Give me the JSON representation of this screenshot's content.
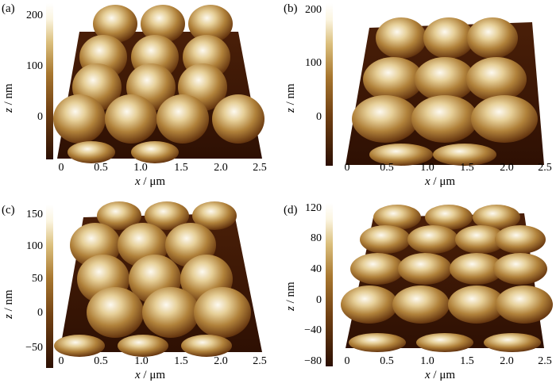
{
  "figure": {
    "x_axis_var": "x",
    "x_axis_unit": " / μm",
    "z_axis_var": "z",
    "z_axis_unit": " / nm"
  },
  "colors": {
    "colorbar_dark": "#3a1606",
    "colorbar_mid": "#9c6a2a",
    "colorbar_light": "#fdfbf0",
    "surface_dark": "#3c1805",
    "surface_light": "#f7f2e6"
  },
  "panels": [
    {
      "letter": "(a)",
      "z_ticks": [
        "200",
        "100",
        "0"
      ],
      "x_ticks": [
        "0",
        "0.5",
        "1.0",
        "1.5",
        "2.0",
        "2.5"
      ]
    },
    {
      "letter": "(b)",
      "z_ticks": [
        "200",
        "100",
        "0"
      ],
      "x_ticks": [
        "0",
        "0.5",
        "1.0",
        "1.5",
        "2.0",
        "2.5"
      ]
    },
    {
      "letter": "(c)",
      "z_ticks": [
        "150",
        "100",
        "50",
        "0",
        "−50"
      ],
      "x_ticks": [
        "0",
        "0.5",
        "1.0",
        "1.5",
        "2.0",
        "2.5"
      ]
    },
    {
      "letter": "(d)",
      "z_ticks": [
        "120",
        "80",
        "40",
        "0",
        "−40",
        "−80"
      ],
      "x_ticks": [
        "0",
        "0.5",
        "1.0",
        "1.5",
        "2.0",
        "2.5"
      ]
    }
  ],
  "chart_data": [
    {
      "type": "other",
      "panel": "(a)",
      "x_ticks": [
        0,
        0.5,
        1.0,
        1.5,
        2.0,
        2.5
      ],
      "z_ticks": [
        200,
        100,
        0
      ],
      "xlabel": "x / μm",
      "zlabel": "z / nm"
    },
    {
      "type": "other",
      "panel": "(b)",
      "x_ticks": [
        0,
        0.5,
        1.0,
        1.5,
        2.0,
        2.5
      ],
      "z_ticks": [
        200,
        100,
        0
      ],
      "xlabel": "x / μm",
      "zlabel": "z / nm"
    },
    {
      "type": "other",
      "panel": "(c)",
      "x_ticks": [
        0,
        0.5,
        1.0,
        1.5,
        2.0,
        2.5
      ],
      "z_ticks": [
        150,
        100,
        50,
        0,
        -50
      ],
      "xlabel": "x / μm",
      "zlabel": "z / nm"
    },
    {
      "type": "other",
      "panel": "(d)",
      "x_ticks": [
        0,
        0.5,
        1.0,
        1.5,
        2.0,
        2.5
      ],
      "z_ticks": [
        120,
        80,
        40,
        0,
        -40,
        -80
      ],
      "xlabel": "x / μm",
      "zlabel": "z / nm"
    }
  ]
}
